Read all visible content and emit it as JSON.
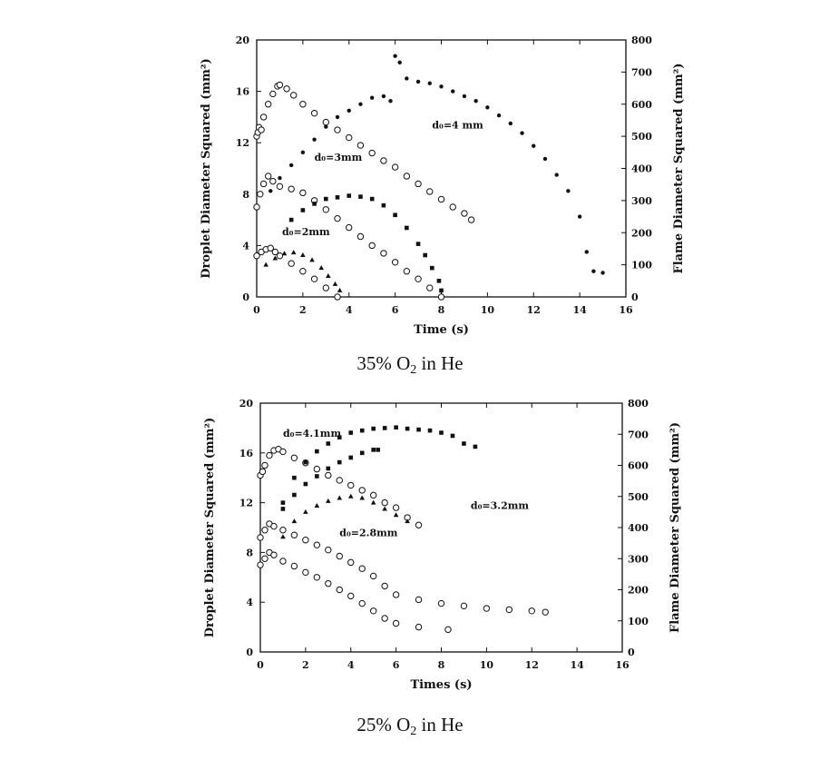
{
  "chart_data": [
    {
      "type": "scatter",
      "caption": {
        "pre": "35%  O",
        "sub": "2",
        "post": "  in  He"
      },
      "xlabel": "Time (s)",
      "ylabel_left": "Droplet Diameter Squared (mm²)",
      "ylabel_right": "Flame Diameter Squared (mm²)",
      "xlim": [
        0,
        16
      ],
      "ylim_left": [
        0,
        20
      ],
      "ylim_right": [
        0,
        800
      ],
      "xticks": [
        "0",
        "2",
        "4",
        "6",
        "8",
        "10",
        "12",
        "14",
        "16"
      ],
      "yticks_left": [
        "0",
        "4",
        "8",
        "12",
        "16",
        "20"
      ],
      "yticks_right": [
        "0",
        "100",
        "200",
        "300",
        "400",
        "500",
        "600",
        "700",
        "800"
      ],
      "annotations": [
        {
          "text": "d₀=4 mm",
          "at": [
            7.6,
            13.1
          ]
        },
        {
          "text": "d₀=3mm",
          "at": [
            2.5,
            10.6
          ]
        },
        {
          "text": "d₀=2mm",
          "at": [
            1.1,
            4.8
          ]
        }
      ],
      "series": [
        {
          "name": "droplet d0=4 mm",
          "axis": "left",
          "marker": "circle",
          "x": [
            0,
            0.05,
            0.1,
            0.2,
            0.3,
            0.5,
            0.7,
            0.9,
            1.0,
            1.3,
            1.6,
            2,
            2.5,
            3,
            3.5,
            4,
            4.5,
            5,
            5.5,
            6,
            6.5,
            7,
            7.5,
            8,
            8.5,
            9,
            9.3
          ],
          "y": [
            12.5,
            12.8,
            13.2,
            13.0,
            14.0,
            15.0,
            15.8,
            16.4,
            16.5,
            16.2,
            15.7,
            15.0,
            14.3,
            13.6,
            13.0,
            12.4,
            11.8,
            11.2,
            10.6,
            10.1,
            9.4,
            8.8,
            8.2,
            7.6,
            7.0,
            6.5,
            6.0
          ]
        },
        {
          "name": "flame d0=4 mm",
          "axis": "right",
          "marker": "dot",
          "x": [
            0.6,
            1.0,
            1.5,
            2.0,
            2.5,
            3.0,
            3.5,
            4.0,
            4.5,
            5.0,
            5.5,
            5.8,
            6.0,
            6.2,
            6.5,
            7.0,
            7.5,
            8.0,
            8.5,
            9.0,
            9.5,
            10.0,
            10.5,
            11.0,
            11.5,
            12.0,
            12.5,
            13.0,
            13.5,
            14.0,
            14.3,
            14.6,
            15.0
          ],
          "y": [
            330,
            370,
            410,
            450,
            490,
            530,
            560,
            580,
            600,
            620,
            625,
            610,
            750,
            730,
            680,
            670,
            665,
            655,
            640,
            625,
            610,
            590,
            565,
            540,
            510,
            470,
            430,
            380,
            330,
            250,
            140,
            80,
            75
          ]
        },
        {
          "name": "droplet d0=3 mm",
          "axis": "left",
          "marker": "circle",
          "x": [
            0,
            0.15,
            0.3,
            0.5,
            0.7,
            1.0,
            1.5,
            2,
            2.5,
            3,
            3.5,
            4,
            4.5,
            5,
            5.5,
            6,
            6.5,
            7,
            7.5,
            8
          ],
          "y": [
            7.0,
            8.0,
            8.8,
            9.4,
            9.0,
            8.6,
            8.4,
            8.1,
            7.5,
            6.8,
            6.1,
            5.4,
            4.7,
            4.0,
            3.4,
            2.7,
            2.0,
            1.4,
            0.7,
            0.0
          ]
        },
        {
          "name": "flame d0=3 mm",
          "axis": "right",
          "marker": "square",
          "x": [
            1.5,
            2.0,
            2.5,
            3.0,
            3.5,
            4.0,
            4.5,
            5.0,
            5.5,
            6.0,
            6.5,
            7.0,
            7.3,
            7.6,
            7.9,
            8.0
          ],
          "y": [
            240,
            270,
            290,
            305,
            310,
            315,
            312,
            305,
            285,
            255,
            215,
            165,
            130,
            90,
            50,
            20
          ]
        },
        {
          "name": "droplet d0=2 mm",
          "axis": "left",
          "marker": "circle",
          "x": [
            0,
            0.2,
            0.4,
            0.6,
            0.8,
            1.0,
            1.5,
            2,
            2.5,
            3,
            3.5
          ],
          "y": [
            3.2,
            3.5,
            3.7,
            3.8,
            3.5,
            3.2,
            2.6,
            2.0,
            1.4,
            0.7,
            0.0
          ]
        },
        {
          "name": "flame d0=2 mm",
          "axis": "right",
          "marker": "triangle",
          "x": [
            0.4,
            0.8,
            1.2,
            1.6,
            2.0,
            2.4,
            2.8,
            3.1,
            3.4,
            3.6
          ],
          "y": [
            100,
            120,
            135,
            138,
            130,
            115,
            90,
            65,
            40,
            20
          ]
        }
      ]
    },
    {
      "type": "scatter",
      "caption": {
        "pre": "25%  O",
        "sub": "2",
        "post": "  in  He"
      },
      "xlabel": "Times (s)",
      "ylabel_left": "Droplet Diameter Squared (mm²)",
      "ylabel_right": "Flame Diameter Squared (mm²)",
      "xlim": [
        0,
        16
      ],
      "ylim_left": [
        0,
        20
      ],
      "ylim_right": [
        0,
        800
      ],
      "xticks": [
        "0",
        "2",
        "4",
        "6",
        "8",
        "10",
        "12",
        "14",
        "16"
      ],
      "yticks_left": [
        "0",
        "4",
        "8",
        "12",
        "16",
        "20"
      ],
      "yticks_right": [
        "0",
        "100",
        "200",
        "300",
        "400",
        "500",
        "600",
        "700",
        "800"
      ],
      "annotations": [
        {
          "text": "d₀=4.1mm",
          "at": [
            1.0,
            17.3
          ]
        },
        {
          "text": "d₀=3.2mm",
          "at": [
            9.3,
            11.5
          ]
        },
        {
          "text": "d₀=2.8mm",
          "at": [
            3.5,
            9.3
          ]
        }
      ],
      "series": [
        {
          "name": "droplet d0=4.1 mm",
          "axis": "left",
          "marker": "circle",
          "x": [
            0,
            0.1,
            0.2,
            0.4,
            0.6,
            0.8,
            1.0,
            1.5,
            2,
            2.5,
            3,
            3.5,
            4,
            4.5,
            5,
            5.5,
            6,
            6.5,
            7
          ],
          "y": [
            14.2,
            14.5,
            15.0,
            15.8,
            16.2,
            16.3,
            16.1,
            15.6,
            15.2,
            14.7,
            14.2,
            13.8,
            13.4,
            13.0,
            12.6,
            12.0,
            11.6,
            10.8,
            10.2
          ]
        },
        {
          "name": "flame d0=4.1 mm",
          "axis": "right",
          "marker": "square",
          "x": [
            1.0,
            1.5,
            2.0,
            2.5,
            3.0,
            3.5,
            4.0,
            4.5,
            5.0,
            5.5,
            6.0,
            6.5,
            7.0,
            7.5,
            8.0,
            8.5,
            9.0,
            9.5
          ],
          "y": [
            480,
            560,
            610,
            645,
            670,
            690,
            705,
            712,
            718,
            720,
            722,
            718,
            715,
            712,
            705,
            695,
            670,
            660
          ]
        },
        {
          "name": "droplet d0=3.2 mm",
          "axis": "left",
          "marker": "circle",
          "x": [
            0,
            0.2,
            0.4,
            0.6,
            1.0,
            1.5,
            2,
            2.5,
            3,
            3.5,
            4,
            4.5,
            5,
            5.5,
            6,
            7,
            8,
            9,
            10,
            11,
            12,
            12.6
          ],
          "y": [
            9.2,
            9.8,
            10.3,
            10.1,
            9.8,
            9.4,
            9.0,
            8.6,
            8.2,
            7.7,
            7.2,
            6.7,
            6.1,
            5.3,
            4.6,
            4.2,
            3.9,
            3.7,
            3.5,
            3.4,
            3.3,
            3.2
          ]
        },
        {
          "name": "flame d0=3.2 mm",
          "axis": "right",
          "marker": "square",
          "x": [
            1.0,
            1.5,
            2.0,
            2.5,
            3.0,
            3.5,
            4.0,
            4.5,
            5.0,
            5.2
          ],
          "y": [
            460,
            505,
            540,
            565,
            590,
            610,
            625,
            640,
            650,
            650
          ]
        },
        {
          "name": "droplet d0=2.8 mm",
          "axis": "left",
          "marker": "circle",
          "x": [
            0,
            0.2,
            0.4,
            0.6,
            1.0,
            1.5,
            2,
            2.5,
            3,
            3.5,
            4,
            4.5,
            5,
            5.5,
            6,
            7,
            8.3
          ],
          "y": [
            7.0,
            7.5,
            8.0,
            7.8,
            7.3,
            6.9,
            6.4,
            6.0,
            5.5,
            5.0,
            4.5,
            3.9,
            3.3,
            2.7,
            2.3,
            2.0,
            1.8
          ]
        },
        {
          "name": "flame d0=2.8 mm",
          "axis": "right",
          "marker": "triangle",
          "x": [
            1.0,
            1.5,
            2.0,
            2.5,
            3.0,
            3.5,
            4.0,
            4.5,
            5.0,
            5.5,
            6.0,
            6.5
          ],
          "y": [
            370,
            420,
            450,
            470,
            485,
            495,
            500,
            495,
            480,
            460,
            440,
            420
          ]
        }
      ]
    }
  ]
}
